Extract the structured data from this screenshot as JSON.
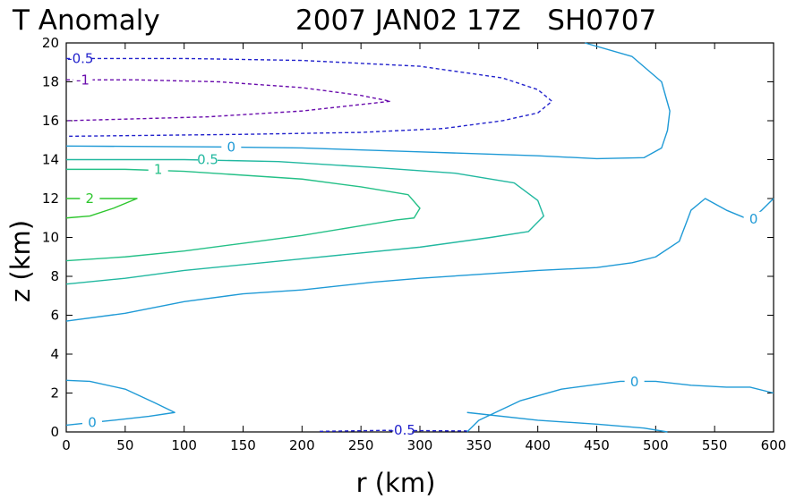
{
  "chart_data": {
    "type": "contour",
    "title_left": "T Anomaly",
    "title_right": "2007 JAN02 17Z   SH0707",
    "xlabel": "r (km)",
    "ylabel": "z (km)",
    "xlim": [
      0,
      600
    ],
    "ylim": [
      0,
      20
    ],
    "x_ticks": [
      0,
      50,
      100,
      150,
      200,
      250,
      300,
      350,
      400,
      450,
      500,
      550,
      600
    ],
    "y_ticks": [
      0,
      2,
      4,
      6,
      8,
      10,
      12,
      14,
      16,
      18,
      20
    ],
    "grid": false,
    "contours": [
      {
        "name": "upper-minus-0p5",
        "level": "-0.5",
        "color": "#2222cc",
        "dashed": true,
        "points": [
          [
            0,
            19.2
          ],
          [
            100,
            19.2
          ],
          [
            200,
            19.1
          ],
          [
            300,
            18.8
          ],
          [
            370,
            18.2
          ],
          [
            400,
            17.6
          ],
          [
            412,
            17.0
          ],
          [
            400,
            16.4
          ],
          [
            370,
            16.0
          ],
          [
            320,
            15.6
          ],
          [
            250,
            15.4
          ],
          [
            150,
            15.3
          ],
          [
            0,
            15.2
          ]
        ],
        "label": {
          "text": "-0.5",
          "x": 12,
          "y": 19.2
        }
      },
      {
        "name": "upper-minus-1",
        "level": "-1",
        "color": "#6a0dad",
        "dashed": true,
        "points": [
          [
            0,
            18.1
          ],
          [
            60,
            18.1
          ],
          [
            130,
            18.0
          ],
          [
            200,
            17.7
          ],
          [
            250,
            17.3
          ],
          [
            275,
            17.0
          ],
          [
            200,
            16.5
          ],
          [
            120,
            16.2
          ],
          [
            0,
            16.0
          ]
        ],
        "label": {
          "text": "-1",
          "x": 14,
          "y": 18.1
        }
      },
      {
        "name": "zero-outer",
        "level": "0",
        "color": "#1f9ad6",
        "dashed": false,
        "points": [
          [
            0,
            14.7
          ],
          [
            130,
            14.65
          ],
          [
            200,
            14.6
          ],
          [
            300,
            14.4
          ],
          [
            400,
            14.2
          ],
          [
            450,
            14.05
          ],
          [
            490,
            14.1
          ],
          [
            505,
            14.6
          ],
          [
            510,
            15.5
          ],
          [
            512,
            16.5
          ],
          [
            505,
            18.0
          ],
          [
            480,
            19.3
          ],
          [
            440,
            20
          ]
        ],
        "label": {
          "text": "0",
          "x": 140,
          "y": 14.65
        }
      },
      {
        "name": "zero-lower",
        "level": "0",
        "color": "#1f9ad6",
        "dashed": false,
        "points": [
          [
            0,
            5.7
          ],
          [
            50,
            6.1
          ],
          [
            100,
            6.7
          ],
          [
            150,
            7.1
          ],
          [
            200,
            7.3
          ],
          [
            260,
            7.7
          ],
          [
            300,
            7.9
          ],
          [
            350,
            8.1
          ],
          [
            400,
            8.3
          ],
          [
            450,
            8.45
          ],
          [
            480,
            8.7
          ],
          [
            500,
            9.0
          ],
          [
            520,
            9.8
          ],
          [
            525,
            10.6
          ],
          [
            530,
            11.4
          ],
          [
            542,
            12.0
          ],
          [
            560,
            11.4
          ],
          [
            580,
            10.9
          ],
          [
            590,
            11.4
          ],
          [
            600,
            12.0
          ]
        ],
        "label": {
          "text": "0",
          "x": 583,
          "y": 10.95
        }
      },
      {
        "name": "plus-0p5",
        "level": "0.5",
        "color": "#22b8a0",
        "dashed": false,
        "points": [
          [
            0,
            14.0
          ],
          [
            100,
            14.0
          ],
          [
            180,
            13.9
          ],
          [
            260,
            13.6
          ],
          [
            330,
            13.3
          ],
          [
            380,
            12.8
          ],
          [
            400,
            11.9
          ],
          [
            405,
            11.1
          ],
          [
            392,
            10.3
          ],
          [
            360,
            10.0
          ],
          [
            300,
            9.5
          ],
          [
            200,
            8.9
          ],
          [
            100,
            8.3
          ],
          [
            50,
            7.9
          ],
          [
            0,
            7.6
          ]
        ],
        "label": {
          "text": "0.5",
          "x": 120,
          "y": 14.0
        }
      },
      {
        "name": "plus-1",
        "level": "1",
        "color": "#24c087",
        "dashed": false,
        "points": [
          [
            0,
            13.5
          ],
          [
            50,
            13.5
          ],
          [
            100,
            13.4
          ],
          [
            200,
            13.0
          ],
          [
            250,
            12.6
          ],
          [
            290,
            12.2
          ],
          [
            300,
            11.5
          ],
          [
            295,
            11.0
          ],
          [
            280,
            10.9
          ],
          [
            260,
            10.7
          ],
          [
            200,
            10.1
          ],
          [
            150,
            9.7
          ],
          [
            100,
            9.3
          ],
          [
            50,
            9.0
          ],
          [
            0,
            8.8
          ]
        ],
        "label": {
          "text": "1",
          "x": 78,
          "y": 13.5
        }
      },
      {
        "name": "plus-2",
        "level": "2",
        "color": "#2ec62e",
        "dashed": false,
        "points": [
          [
            0,
            12.0
          ],
          [
            60,
            12.0
          ],
          [
            40,
            11.5
          ],
          [
            20,
            11.1
          ],
          [
            0,
            11.0
          ]
        ],
        "label": {
          "text": "2",
          "x": 20,
          "y": 12.0
        }
      },
      {
        "name": "zero-bottom-left",
        "level": "0",
        "color": "#1f9ad6",
        "dashed": false,
        "points": [
          [
            0,
            2.65
          ],
          [
            20,
            2.6
          ],
          [
            50,
            2.2
          ],
          [
            75,
            1.5
          ],
          [
            92,
            1.0
          ],
          [
            70,
            0.8
          ],
          [
            40,
            0.6
          ],
          [
            0,
            0.35
          ]
        ],
        "label": {
          "text": "0",
          "x": 22,
          "y": 0.48
        }
      },
      {
        "name": "zero-bottom-right",
        "level": "0",
        "color": "#1f9ad6",
        "dashed": false,
        "points": [
          [
            340,
            0
          ],
          [
            350,
            0.6
          ],
          [
            385,
            1.6
          ],
          [
            420,
            2.2
          ],
          [
            470,
            2.6
          ],
          [
            500,
            2.6
          ],
          [
            530,
            2.4
          ],
          [
            560,
            2.3
          ],
          [
            580,
            2.3
          ],
          [
            600,
            2.0
          ]
        ],
        "label": {
          "text": "0",
          "x": 482,
          "y": 2.58
        }
      },
      {
        "name": "zero-bottom-right-inner",
        "level": "0",
        "color": "#1f9ad6",
        "dashed": false,
        "points": [
          [
            340,
            1.0
          ],
          [
            400,
            0.6
          ],
          [
            450,
            0.4
          ],
          [
            490,
            0.2
          ],
          [
            510,
            0
          ]
        ]
      },
      {
        "name": "bottom-minus-0p5",
        "level": "-0.5",
        "color": "#2222cc",
        "dashed": true,
        "points": [
          [
            215,
            0.03
          ],
          [
            270,
            0.08
          ],
          [
            340,
            0.05
          ]
        ],
        "label": {
          "text": "-0.5",
          "x": 285,
          "y": 0.1
        }
      }
    ]
  }
}
